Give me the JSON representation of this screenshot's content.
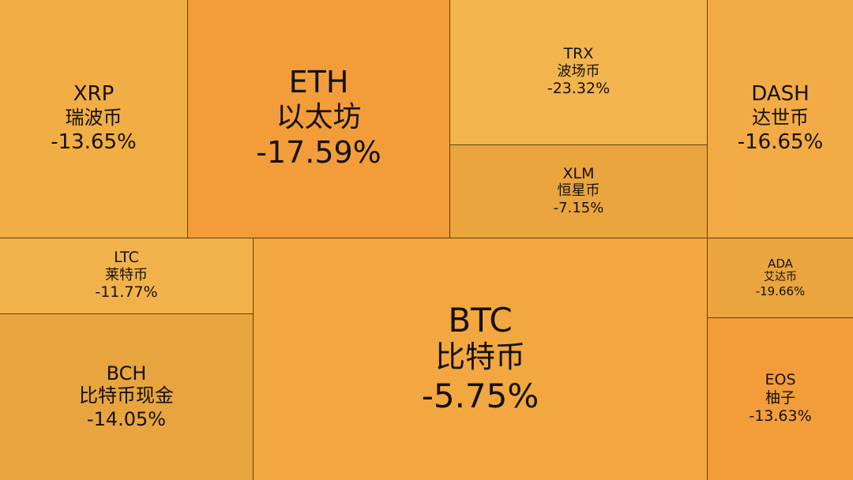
{
  "chart_data": {
    "type": "treemap",
    "title": "",
    "tiles": [
      {
        "symbol": "XRP",
        "name": "瑞波币",
        "change": "-13.65%",
        "change_value": -13.65,
        "color": "#F1AE44"
      },
      {
        "symbol": "ETH",
        "name": "以太坊",
        "change": "-17.59%",
        "change_value": -17.59,
        "color": "#F29D3A"
      },
      {
        "symbol": "TRX",
        "name": "波场币",
        "change": "-23.32%",
        "change_value": -23.32,
        "color": "#F2B44D"
      },
      {
        "symbol": "XLM",
        "name": "恒星币",
        "change": "-7.15%",
        "change_value": -7.15,
        "color": "#EAA53F"
      },
      {
        "symbol": "DASH",
        "name": "达世币",
        "change": "-16.65%",
        "change_value": -16.65,
        "color": "#F2AB45"
      },
      {
        "symbol": "LTC",
        "name": "莱特币",
        "change": "-11.77%",
        "change_value": -11.77,
        "color": "#F2B24B"
      },
      {
        "symbol": "BCH",
        "name": "比特币现金",
        "change": "-14.05%",
        "change_value": -14.05,
        "color": "#E8A53F"
      },
      {
        "symbol": "BTC",
        "name": "比特币",
        "change": "-5.75%",
        "change_value": -5.75,
        "color": "#F2A740"
      },
      {
        "symbol": "ADA",
        "name": "艾达币",
        "change": "-19.66%",
        "change_value": -19.66,
        "color": "#EAA53F"
      },
      {
        "symbol": "EOS",
        "name": "柚子",
        "change": "-13.63%",
        "change_value": -13.63,
        "color": "#F29D3A"
      }
    ]
  }
}
